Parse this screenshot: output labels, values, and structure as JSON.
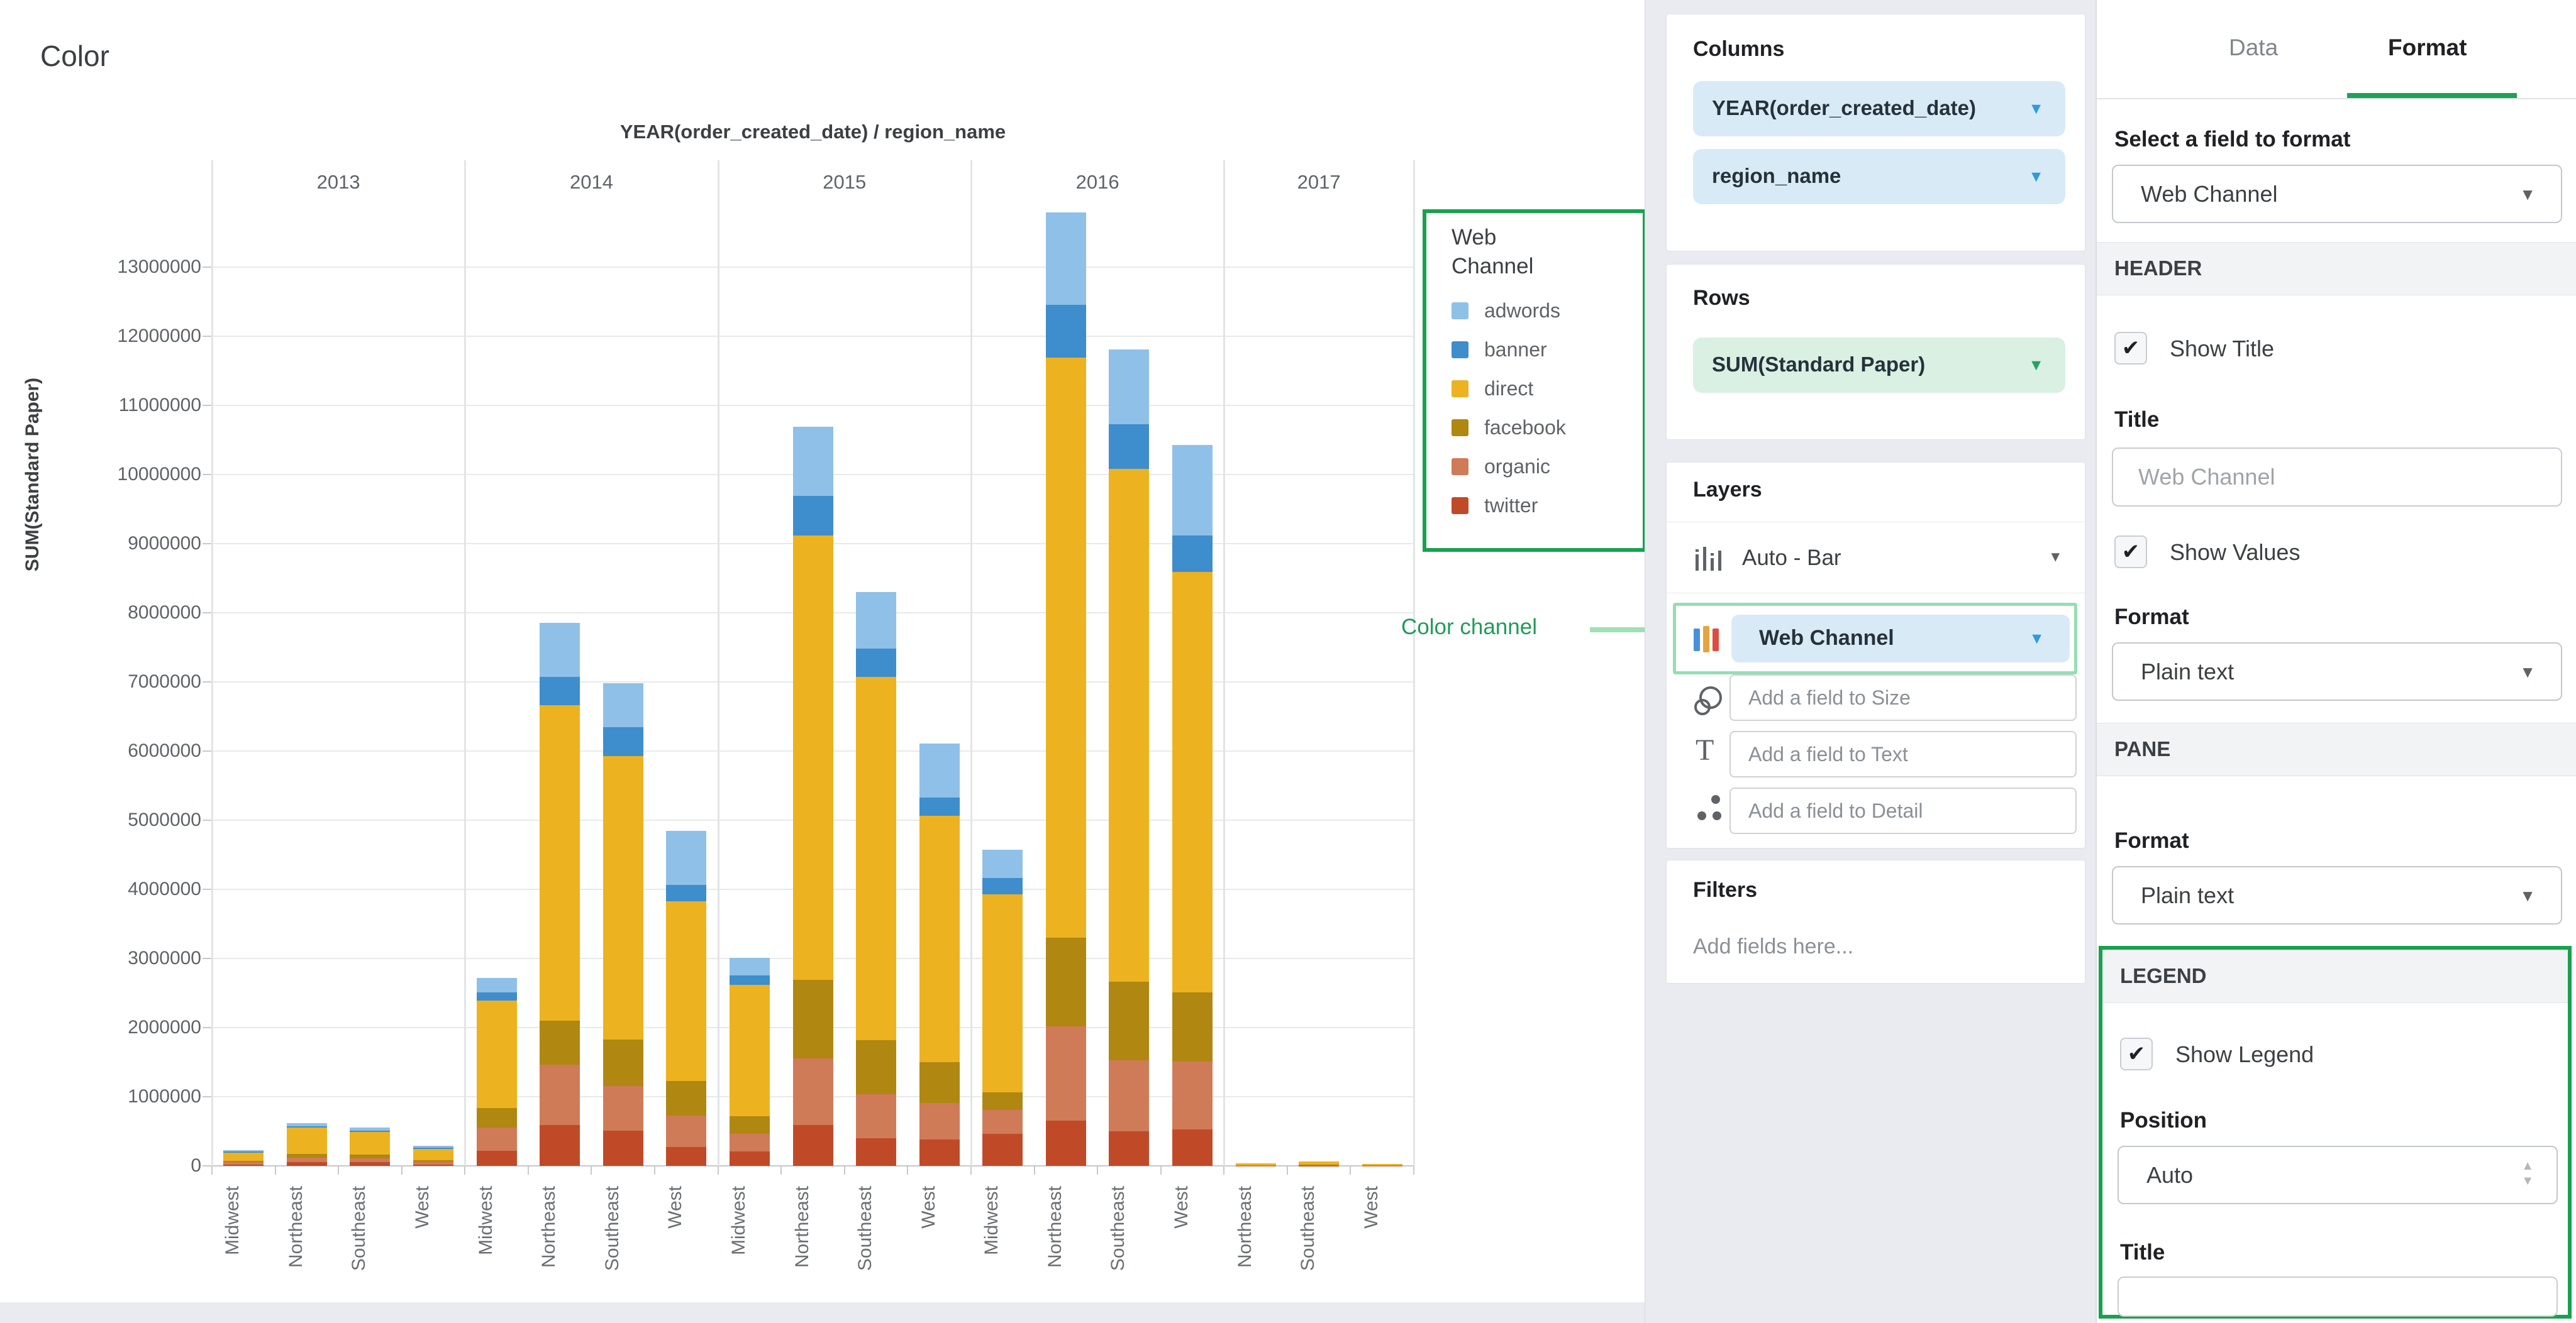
{
  "page_title": "Color",
  "annotation": {
    "text": "Color channel",
    "color": "#1F9C58",
    "line_color": "#9FE0B5"
  },
  "accent": {
    "strong_green": "#18A14F",
    "light_green": "#94DFB2",
    "tab_green": "#1FA05C",
    "blue_caret": "#2E9BE0",
    "green_caret": "#27A163"
  },
  "chart_data": {
    "type": "bar",
    "stacked": true,
    "title": "YEAR(order_created_date) / region_name",
    "ylabel": "SUM(Standard Paper)",
    "ylim": [
      0,
      13860000
    ],
    "grid": true,
    "legend_position": "right",
    "yticks": [
      0,
      1000000,
      2000000,
      3000000,
      4000000,
      5000000,
      6000000,
      7000000,
      8000000,
      9000000,
      10000000,
      11000000,
      12000000,
      13000000
    ],
    "ytick_labels": [
      "0",
      "1000000",
      "2000000",
      "3000000",
      "4000000",
      "5000000",
      "6000000",
      "7000000",
      "8000000",
      "9000000",
      "10000000",
      "11000000",
      "12000000",
      "13000000"
    ],
    "years": [
      {
        "label": "2013",
        "regions": [
          "Midwest",
          "Northeast",
          "Southeast",
          "West"
        ]
      },
      {
        "label": "2014",
        "regions": [
          "Midwest",
          "Northeast",
          "Southeast",
          "West"
        ]
      },
      {
        "label": "2015",
        "regions": [
          "Midwest",
          "Northeast",
          "Southeast",
          "West"
        ]
      },
      {
        "label": "2016",
        "regions": [
          "Midwest",
          "Northeast",
          "Southeast",
          "West"
        ]
      },
      {
        "label": "2017",
        "regions": [
          "Northeast",
          "Southeast",
          "West"
        ]
      }
    ],
    "stack_bottom_to_top": [
      "twitter",
      "organic",
      "facebook",
      "direct",
      "banner",
      "adwords"
    ],
    "series": [
      {
        "name": "adwords",
        "color": "#8FC0E7",
        "values": [
          20000,
          50000,
          40000,
          30000,
          210000,
          780000,
          640000,
          780000,
          260000,
          1000000,
          820000,
          780000,
          410000,
          1340000,
          1090000,
          1300000,
          0,
          0,
          0
        ]
      },
      {
        "name": "banner",
        "color": "#3E8DCC",
        "values": [
          10000,
          20000,
          20000,
          10000,
          120000,
          410000,
          410000,
          230000,
          130000,
          570000,
          410000,
          270000,
          230000,
          760000,
          640000,
          530000,
          0,
          0,
          0
        ]
      },
      {
        "name": "direct",
        "color": "#EDB220",
        "values": [
          130000,
          380000,
          330000,
          170000,
          1550000,
          4560000,
          4100000,
          2600000,
          1900000,
          6430000,
          5250000,
          3560000,
          2870000,
          8390000,
          7420000,
          6080000,
          30000,
          40000,
          20000
        ]
      },
      {
        "name": "facebook",
        "color": "#AF8711",
        "values": [
          20000,
          50000,
          50000,
          30000,
          290000,
          640000,
          680000,
          500000,
          260000,
          1140000,
          780000,
          590000,
          250000,
          1280000,
          1130000,
          1000000,
          0,
          5000,
          0
        ]
      },
      {
        "name": "organic",
        "color": "#D07B58",
        "values": [
          30000,
          70000,
          60000,
          30000,
          330000,
          870000,
          640000,
          460000,
          250000,
          960000,
          640000,
          530000,
          350000,
          1370000,
          1030000,
          980000,
          5000,
          10000,
          5000
        ]
      },
      {
        "name": "twitter",
        "color": "#C04A28",
        "values": [
          20000,
          50000,
          50000,
          20000,
          220000,
          590000,
          510000,
          270000,
          210000,
          590000,
          400000,
          380000,
          460000,
          650000,
          500000,
          530000,
          5000,
          5000,
          5000
        ]
      }
    ]
  },
  "legend": {
    "title": "Web\nChannel"
  },
  "shelves": {
    "columns": {
      "title": "Columns",
      "pills": [
        "YEAR(order_created_date)",
        "region_name"
      ]
    },
    "rows": {
      "title": "Rows",
      "pills": [
        "SUM(Standard Paper)"
      ]
    },
    "layers": {
      "title": "Layers",
      "chart_type": "Auto - Bar",
      "color_field": "Web Channel",
      "size_placeholder": "Add a field to Size",
      "text_placeholder": "Add a field to Text",
      "detail_placeholder": "Add a field to Detail"
    },
    "filters": {
      "title": "Filters",
      "placeholder": "Add fields here..."
    }
  },
  "inspector": {
    "tabs": {
      "data": "Data",
      "format": "Format",
      "active": "Format"
    },
    "field_select": {
      "label": "Select a field to format",
      "value": "Web Channel"
    },
    "header_section": {
      "title": "HEADER",
      "show_title_label": "Show Title",
      "show_title_checked": true,
      "title_label": "Title",
      "title_placeholder": "Web Channel",
      "title_value": "",
      "show_values_label": "Show Values",
      "show_values_checked": true,
      "format_label": "Format",
      "format_value": "Plain text"
    },
    "pane_section": {
      "title": "PANE",
      "format_label": "Format",
      "format_value": "Plain text"
    },
    "legend_section": {
      "title": "LEGEND",
      "show_legend_label": "Show Legend",
      "show_legend_checked": true,
      "position_label": "Position",
      "position_value": "Auto",
      "title_label": "Title",
      "title_value": ""
    }
  }
}
